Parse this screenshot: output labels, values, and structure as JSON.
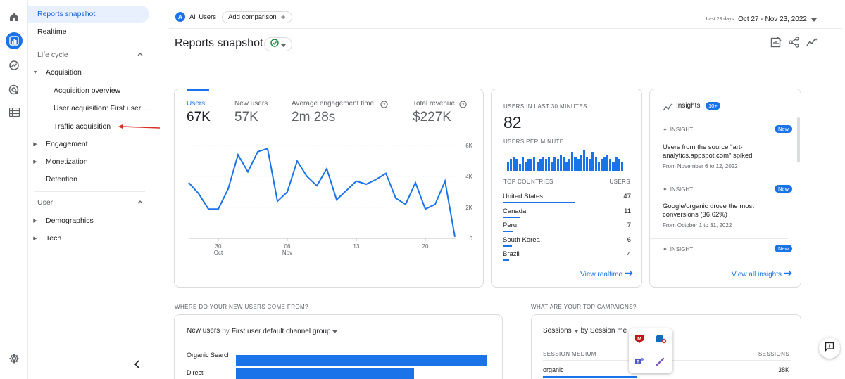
{
  "sidebar": {
    "reports_snapshot": "Reports snapshot",
    "realtime": "Realtime",
    "lifecycle_header": "Life cycle",
    "acquisition": "Acquisition",
    "acquisition_overview": "Acquisition overview",
    "user_acquisition": "User acquisition: First user ...",
    "traffic_acquisition": "Traffic acquisition",
    "engagement": "Engagement",
    "monetization": "Monetization",
    "retention": "Retention",
    "user_header": "User",
    "demographics": "Demographics",
    "tech": "Tech"
  },
  "header": {
    "avatar_letter": "A",
    "all_users": "All Users",
    "add_comparison": "Add comparison",
    "range_label": "Last 28 days",
    "date_range": "Oct 27 - Nov 23, 2022"
  },
  "page": {
    "title": "Reports snapshot"
  },
  "overview": {
    "metrics": [
      {
        "label": "Users",
        "value": "67K"
      },
      {
        "label": "New users",
        "value": "57K"
      },
      {
        "label": "Average engagement time",
        "value": "2m 28s"
      },
      {
        "label": "Total revenue",
        "value": "$227K"
      }
    ],
    "y_ticks": [
      "6K",
      "4K",
      "2K",
      "0"
    ],
    "x_ticks": [
      {
        "d": "30",
        "m": "Oct"
      },
      {
        "d": "06",
        "m": "Nov"
      },
      {
        "d": "13",
        "m": ""
      },
      {
        "d": "20",
        "m": ""
      }
    ]
  },
  "chart_data": {
    "type": "line",
    "x": [
      "Oct 27",
      "Oct 28",
      "Oct 29",
      "Oct 30",
      "Oct 31",
      "Nov 1",
      "Nov 2",
      "Nov 3",
      "Nov 4",
      "Nov 5",
      "Nov 6",
      "Nov 7",
      "Nov 8",
      "Nov 9",
      "Nov 10",
      "Nov 11",
      "Nov 12",
      "Nov 13",
      "Nov 14",
      "Nov 15",
      "Nov 16",
      "Nov 17",
      "Nov 18",
      "Nov 19",
      "Nov 20",
      "Nov 21",
      "Nov 22",
      "Nov 23"
    ],
    "series": [
      {
        "name": "Users",
        "values": [
          3600,
          2900,
          1900,
          1900,
          3200,
          5400,
          4300,
          5600,
          5800,
          2400,
          3000,
          5000,
          4000,
          3400,
          4500,
          2500,
          3100,
          3700,
          3500,
          3800,
          4200,
          2600,
          2200,
          3600,
          1900,
          2200,
          3700,
          100
        ]
      }
    ],
    "ylim": [
      0,
      6000
    ],
    "y_ticks": [
      "6K",
      "4K",
      "2K",
      "0"
    ],
    "x_tick_labels": [
      "30 Oct",
      "06 Nov",
      "13",
      "20"
    ],
    "grid": true
  },
  "realtime": {
    "title": "USERS IN LAST 30 MINUTES",
    "value": "82",
    "per_minute": "USERS PER MINUTE",
    "bars": [
      4,
      5,
      6,
      5,
      3,
      6,
      4,
      5,
      5,
      6,
      4,
      5,
      6,
      5,
      6,
      4,
      6,
      5,
      7,
      6,
      4,
      5,
      8,
      6,
      5,
      7,
      9,
      6,
      5,
      8,
      6,
      4,
      5,
      6,
      7,
      5,
      4,
      6,
      5,
      4
    ],
    "top_countries": "TOP COUNTRIES",
    "users_col": "USERS",
    "countries": [
      {
        "name": "United States",
        "count": "47",
        "pct": 1.0
      },
      {
        "name": "Canada",
        "count": "11",
        "pct": 0.23
      },
      {
        "name": "Peru",
        "count": "7",
        "pct": 0.15
      },
      {
        "name": "South Korea",
        "count": "6",
        "pct": 0.13
      },
      {
        "name": "Brazil",
        "count": "4",
        "pct": 0.09
      }
    ],
    "view_link": "View realtime"
  },
  "insights": {
    "title": "Insights",
    "badge": "10+",
    "items": [
      {
        "label": "INSIGHT",
        "badge": "New",
        "text": "Users from the source \"art-analytics.appspot.com\" spiked",
        "date": "From November 6 to 12, 2022"
      },
      {
        "label": "INSIGHT",
        "badge": "New",
        "text": "Google/organic drove the most conversions (36.62%)",
        "date": "From October 1 to 31, 2022"
      },
      {
        "label": "INSIGHT",
        "badge": "New",
        "text": "",
        "date": ""
      }
    ],
    "view_link": "View all insights"
  },
  "new_users_section": {
    "heading": "WHERE DO YOUR NEW USERS COME FROM?",
    "selector_metric": "New users",
    "selector_by": "by",
    "selector_dim": "First user default channel group",
    "rows": [
      {
        "name": "Organic Search",
        "pct": 1.0
      },
      {
        "name": "Direct",
        "pct": 0.71
      }
    ]
  },
  "campaigns_section": {
    "heading": "WHAT ARE YOUR TOP CAMPAIGNS?",
    "selector_metric": "Sessions",
    "selector_by": "by Session me",
    "col_left": "SESSION MEDIUM",
    "col_right": "SESSIONS",
    "rows": [
      {
        "name": "organic",
        "value": "38K"
      }
    ]
  }
}
